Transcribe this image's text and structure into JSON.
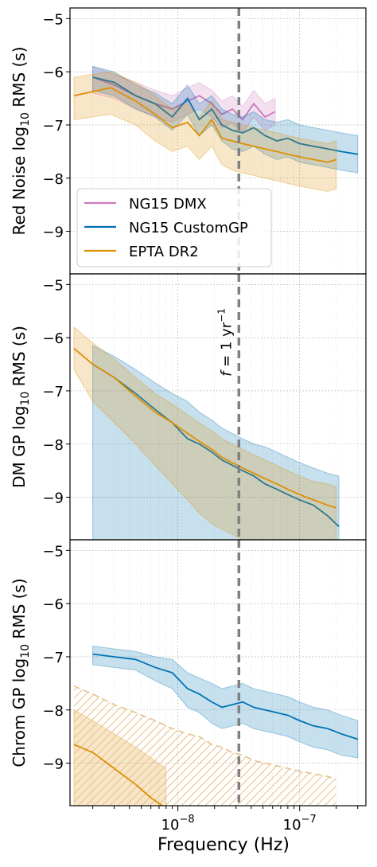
{
  "chart_data": [
    {
      "type": "line",
      "ylabel": "Red Noise log10 RMS (s)",
      "ylabel_main": "Red Noise log",
      "ylabel_sub": "10",
      "ylabel_tail": " RMS (s)",
      "xscale": "log",
      "xlim": [
        1.3e-09,
        3.5e-07
      ],
      "ylim": [
        -9.8,
        -4.8
      ],
      "yticks": [
        -9,
        -8,
        -7,
        -6,
        -5
      ],
      "ytick_labels": [
        "−9",
        "−8",
        "−7",
        "−6",
        "−5"
      ],
      "grid": true,
      "legend": {
        "placement": "lower-left",
        "entries": [
          "NG15 DMX",
          "NG15 CustomGP",
          "EPTA DR2"
        ]
      },
      "series": [
        {
          "name": "NG15 DMX",
          "color": "#cc78bc",
          "x": [
            2e-09,
            3e-09,
            4.5e-09,
            6.5e-09,
            9e-09,
            1.2e-08,
            1.5e-08,
            1.9e-08,
            2.3e-08,
            2.8e-08,
            3.4e-08,
            4.2e-08,
            5.2e-08,
            6.3e-08
          ],
          "y": [
            -6.1,
            -6.25,
            -6.45,
            -6.6,
            -6.7,
            -6.55,
            -6.45,
            -6.6,
            -6.8,
            -6.7,
            -6.9,
            -6.6,
            -6.85,
            -6.75
          ],
          "band": [
            [
              -5.9,
              -6.4
            ],
            [
              -6.05,
              -6.5
            ],
            [
              -6.2,
              -6.7
            ],
            [
              -6.35,
              -6.85
            ],
            [
              -6.45,
              -6.95
            ],
            [
              -6.3,
              -6.8
            ],
            [
              -6.2,
              -6.7
            ],
            [
              -6.35,
              -6.85
            ],
            [
              -6.55,
              -7.05
            ],
            [
              -6.45,
              -6.95
            ],
            [
              -6.65,
              -7.15
            ],
            [
              -6.35,
              -6.85
            ],
            [
              -6.6,
              -7.1
            ],
            [
              -6.5,
              -7.0
            ]
          ]
        },
        {
          "name": "NG15 CustomGP",
          "color": "#0173b2",
          "x": [
            2e-09,
            3e-09,
            4.5e-09,
            6.5e-09,
            9e-09,
            1.2e-08,
            1.5e-08,
            1.9e-08,
            2.3e-08,
            2.8e-08,
            3.4e-08,
            4.2e-08,
            5.2e-08,
            6.5e-08,
            8e-08,
            1e-07,
            1.3e-07,
            1.7e-07,
            2.2e-07,
            3e-07
          ],
          "y": [
            -6.1,
            -6.2,
            -6.45,
            -6.6,
            -6.85,
            -6.5,
            -6.9,
            -6.7,
            -7.0,
            -7.1,
            -7.15,
            -7.05,
            -7.2,
            -7.3,
            -7.25,
            -7.35,
            -7.4,
            -7.45,
            -7.5,
            -7.55
          ],
          "band": [
            [
              -5.9,
              -6.35
            ],
            [
              -6.0,
              -6.45
            ],
            [
              -6.25,
              -6.7
            ],
            [
              -6.4,
              -6.85
            ],
            [
              -6.6,
              -7.1
            ],
            [
              -6.25,
              -6.8
            ],
            [
              -6.6,
              -7.2
            ],
            [
              -6.45,
              -7.0
            ],
            [
              -6.7,
              -7.3
            ],
            [
              -6.8,
              -7.45
            ],
            [
              -6.85,
              -7.5
            ],
            [
              -6.75,
              -7.4
            ],
            [
              -6.9,
              -7.55
            ],
            [
              -6.95,
              -7.65
            ],
            [
              -6.9,
              -7.6
            ],
            [
              -7.0,
              -7.7
            ],
            [
              -7.05,
              -7.75
            ],
            [
              -7.1,
              -7.8
            ],
            [
              -7.15,
              -7.85
            ],
            [
              -7.2,
              -7.9
            ]
          ]
        },
        {
          "name": "EPTA DR2",
          "color": "#de8f05",
          "x": [
            1.4e-09,
            2.8e-09,
            4.5e-09,
            6.5e-09,
            9e-09,
            1.2e-08,
            1.5e-08,
            1.9e-08,
            2.3e-08,
            2.8e-08,
            3.4e-08,
            4.2e-08,
            5.2e-08,
            6.5e-08,
            8e-08,
            1e-07,
            1.3e-07,
            1.7e-07,
            2e-07
          ],
          "y": [
            -6.45,
            -6.3,
            -6.55,
            -6.8,
            -7.05,
            -6.95,
            -7.2,
            -6.9,
            -7.25,
            -7.3,
            -7.35,
            -7.4,
            -7.45,
            -7.5,
            -7.55,
            -7.6,
            -7.65,
            -7.7,
            -7.65
          ],
          "band": [
            [
              -6.1,
              -6.9
            ],
            [
              -6.0,
              -6.8
            ],
            [
              -6.2,
              -7.0
            ],
            [
              -6.45,
              -7.3
            ],
            [
              -6.7,
              -7.5
            ],
            [
              -6.6,
              -7.4
            ],
            [
              -6.85,
              -7.65
            ],
            [
              -6.55,
              -7.4
            ],
            [
              -6.9,
              -7.75
            ],
            [
              -6.95,
              -7.85
            ],
            [
              -7.0,
              -7.9
            ],
            [
              -7.05,
              -7.95
            ],
            [
              -7.1,
              -8.0
            ],
            [
              -7.15,
              -8.05
            ],
            [
              -7.2,
              -8.1
            ],
            [
              -7.25,
              -8.15
            ],
            [
              -7.3,
              -8.2
            ],
            [
              -7.35,
              -8.25
            ],
            [
              -7.3,
              -8.2
            ]
          ]
        }
      ]
    },
    {
      "type": "line",
      "ylabel": "DM GP log10 RMS (s)",
      "ylabel_main": "DM GP log",
      "ylabel_sub": "10",
      "ylabel_tail": " RMS (s)",
      "xscale": "log",
      "xlim": [
        1.3e-09,
        3.5e-07
      ],
      "ylim": [
        -9.8,
        -4.8
      ],
      "yticks": [
        -9,
        -8,
        -7,
        -6,
        -5
      ],
      "ytick_labels": [
        "−9",
        "−8",
        "−7",
        "−6",
        "−5"
      ],
      "grid": true,
      "annotation": {
        "text": "f = 1 yr−1",
        "main": "f",
        "mid": " = 1 yr",
        "sup": "−1"
      },
      "series": [
        {
          "name": "NG15 CustomGP",
          "color": "#0173b2",
          "x": [
            2e-09,
            3e-09,
            4.5e-09,
            6.5e-09,
            9e-09,
            1.2e-08,
            1.5e-08,
            1.9e-08,
            2.3e-08,
            2.8e-08,
            3.4e-08,
            4.2e-08,
            5.2e-08,
            6.5e-08,
            8e-08,
            1e-07,
            1.3e-07,
            1.7e-07,
            2.1e-07
          ],
          "y": [
            -6.5,
            -6.75,
            -7.05,
            -7.35,
            -7.6,
            -7.9,
            -8.0,
            -8.15,
            -8.3,
            -8.4,
            -8.5,
            -8.6,
            -8.75,
            -8.85,
            -8.95,
            -9.05,
            -9.15,
            -9.35,
            -9.55
          ],
          "band": [
            [
              -6.15,
              -9.8
            ],
            [
              -6.35,
              -9.8
            ],
            [
              -6.6,
              -9.8
            ],
            [
              -6.85,
              -9.8
            ],
            [
              -7.05,
              -9.8
            ],
            [
              -7.2,
              -9.8
            ],
            [
              -7.4,
              -9.8
            ],
            [
              -7.55,
              -9.8
            ],
            [
              -7.7,
              -9.8
            ],
            [
              -7.8,
              -9.8
            ],
            [
              -7.9,
              -9.8
            ],
            [
              -8.0,
              -9.8
            ],
            [
              -8.05,
              -9.8
            ],
            [
              -8.15,
              -9.8
            ],
            [
              -8.25,
              -9.8
            ],
            [
              -8.35,
              -9.8
            ],
            [
              -8.45,
              -9.8
            ],
            [
              -8.55,
              -9.8
            ],
            [
              -8.6,
              -9.8
            ]
          ]
        },
        {
          "name": "EPTA DR2",
          "color": "#de8f05",
          "x": [
            1.4e-09,
            2e-09,
            3e-09,
            4.5e-09,
            6.5e-09,
            9e-09,
            1.2e-08,
            1.5e-08,
            1.9e-08,
            2.3e-08,
            2.8e-08,
            3.4e-08,
            4.2e-08,
            5.2e-08,
            6.5e-08,
            8e-08,
            1e-07,
            1.3e-07,
            1.7e-07,
            2e-07
          ],
          "y": [
            -6.2,
            -6.5,
            -6.75,
            -7.1,
            -7.4,
            -7.6,
            -7.8,
            -7.95,
            -8.1,
            -8.25,
            -8.35,
            -8.45,
            -8.55,
            -8.65,
            -8.75,
            -8.85,
            -8.95,
            -9.05,
            -9.15,
            -9.2
          ],
          "band": [
            [
              -5.8,
              -6.6
            ],
            [
              -6.1,
              -7.2
            ],
            [
              -6.4,
              -7.6
            ],
            [
              -6.75,
              -8.0
            ],
            [
              -7.05,
              -8.4
            ],
            [
              -7.25,
              -8.75
            ],
            [
              -7.45,
              -9.05
            ],
            [
              -7.6,
              -9.3
            ],
            [
              -7.75,
              -9.5
            ],
            [
              -7.9,
              -9.6
            ],
            [
              -8.0,
              -9.7
            ],
            [
              -8.1,
              -9.8
            ],
            [
              -8.2,
              -9.8
            ],
            [
              -8.3,
              -9.8
            ],
            [
              -8.4,
              -9.8
            ],
            [
              -8.5,
              -9.8
            ],
            [
              -8.6,
              -9.8
            ],
            [
              -8.7,
              -9.8
            ],
            [
              -8.75,
              -9.8
            ],
            [
              -8.8,
              -9.8
            ]
          ]
        }
      ]
    },
    {
      "type": "line",
      "ylabel": "Chrom GP log10 RMS (s)",
      "ylabel_main": "Chrom GP log",
      "ylabel_sub": "10",
      "ylabel_tail": " RMS (s)",
      "xlabel": "Frequency (Hz)",
      "xscale": "log",
      "xlim": [
        1.3e-09,
        3.5e-07
      ],
      "ylim": [
        -9.8,
        -4.8
      ],
      "yticks": [
        -9,
        -8,
        -7,
        -6,
        -5
      ],
      "ytick_labels": [
        "−9",
        "−8",
        "−7",
        "−6",
        "−5"
      ],
      "xticks": [
        1e-08,
        1e-07
      ],
      "xtick_labels": [
        {
          "base": "10",
          "exp": "−8"
        },
        {
          "base": "10",
          "exp": "−7"
        }
      ],
      "grid": true,
      "series": [
        {
          "name": "NG15 CustomGP",
          "color": "#0173b2",
          "x": [
            2e-09,
            3e-09,
            4.5e-09,
            6.5e-09,
            9e-09,
            1.2e-08,
            1.5e-08,
            1.9e-08,
            2.3e-08,
            2.8e-08,
            3.4e-08,
            4.2e-08,
            5.2e-08,
            6.5e-08,
            8e-08,
            1e-07,
            1.3e-07,
            1.7e-07,
            2.2e-07,
            3e-07
          ],
          "y": [
            -6.95,
            -7.0,
            -7.05,
            -7.2,
            -7.3,
            -7.6,
            -7.7,
            -7.85,
            -7.95,
            -7.9,
            -7.85,
            -7.95,
            -8.0,
            -8.05,
            -8.1,
            -8.2,
            -8.3,
            -8.35,
            -8.45,
            -8.55
          ],
          "band": [
            [
              -6.8,
              -7.15
            ],
            [
              -6.85,
              -7.2
            ],
            [
              -6.9,
              -7.25
            ],
            [
              -7.0,
              -7.45
            ],
            [
              -7.05,
              -7.6
            ],
            [
              -7.3,
              -7.95
            ],
            [
              -7.4,
              -8.05
            ],
            [
              -7.5,
              -8.25
            ],
            [
              -7.6,
              -8.35
            ],
            [
              -7.55,
              -8.3
            ],
            [
              -7.5,
              -8.25
            ],
            [
              -7.6,
              -8.35
            ],
            [
              -7.65,
              -8.4
            ],
            [
              -7.7,
              -8.45
            ],
            [
              -7.75,
              -8.5
            ],
            [
              -7.85,
              -8.6
            ],
            [
              -7.95,
              -8.7
            ],
            [
              -8.0,
              -8.75
            ],
            [
              -8.1,
              -8.85
            ],
            [
              -8.2,
              -8.9
            ]
          ]
        },
        {
          "name": "EPTA DR2",
          "color": "#de8f05",
          "x": [
            1.4e-09,
            2e-09,
            3e-09,
            4.5e-09,
            6e-09,
            8e-09
          ],
          "y": [
            -8.65,
            -8.8,
            -9.1,
            -9.4,
            -9.65,
            -9.85
          ],
          "band": [
            [
              -8.0,
              -9.8
            ],
            [
              -8.2,
              -9.8
            ],
            [
              -8.45,
              -9.8
            ],
            [
              -8.7,
              -9.8
            ],
            [
              -8.9,
              -9.8
            ],
            [
              -9.1,
              -9.8
            ]
          ],
          "upper_limit": {
            "x": [
              1.4e-09,
              2e-09,
              3e-09,
              4.5e-09,
              6.5e-09,
              9e-09,
              1.2e-08,
              1.5e-08,
              1.9e-08,
              2.3e-08,
              2.8e-08,
              3.4e-08,
              4.2e-08,
              5.2e-08,
              6.5e-08,
              8e-08,
              1e-07,
              1.3e-07,
              1.7e-07,
              2e-07
            ],
            "y": [
              -7.55,
              -7.7,
              -7.9,
              -8.05,
              -8.2,
              -8.35,
              -8.45,
              -8.5,
              -8.65,
              -8.7,
              -8.8,
              -8.85,
              -8.95,
              -9.0,
              -9.05,
              -9.1,
              -9.15,
              -9.2,
              -9.25,
              -9.3
            ]
          }
        }
      ]
    }
  ],
  "vline": {
    "x": 3.17e-08,
    "color": "#808080"
  },
  "colors": {
    "grid": "#b0b0b0"
  }
}
